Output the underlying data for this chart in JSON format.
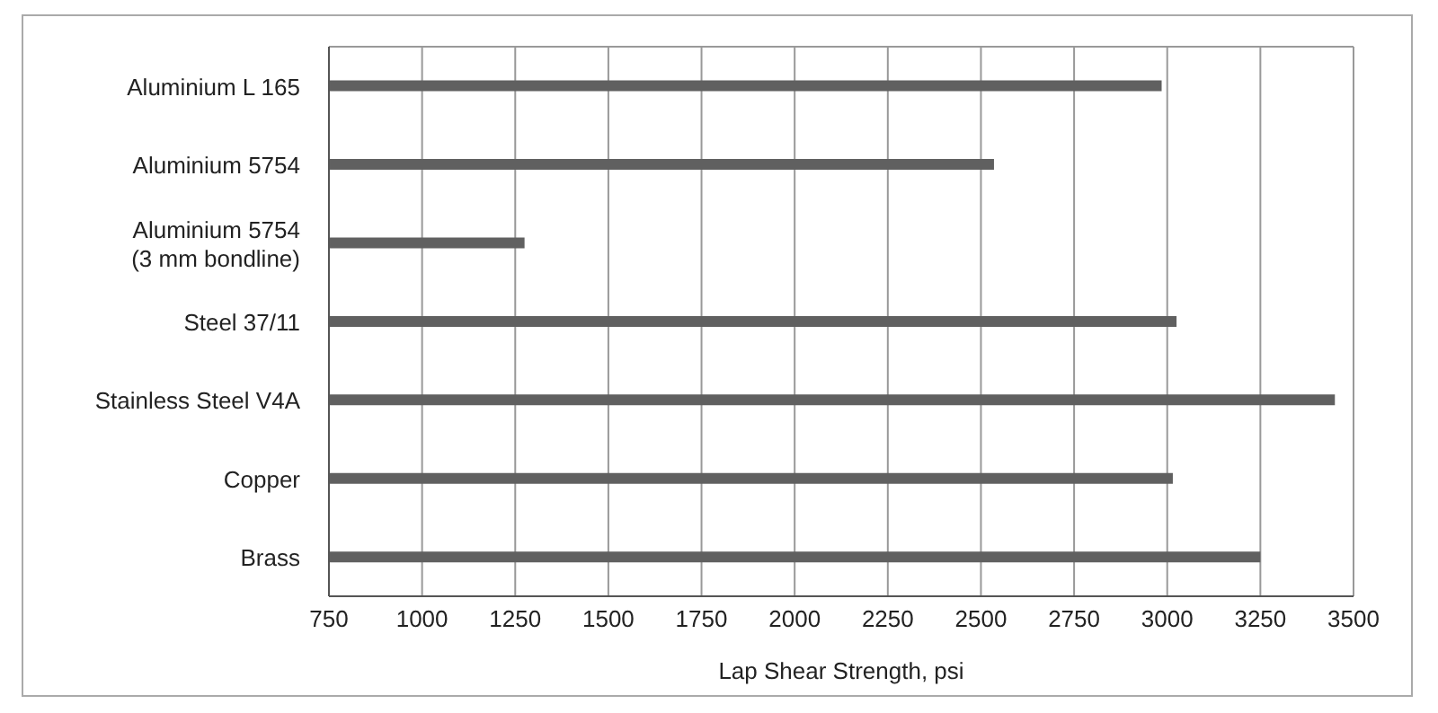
{
  "chart_data": {
    "type": "bar",
    "orientation": "horizontal",
    "categories": [
      "Aluminium L 165",
      "Aluminium 5754",
      "Aluminium 5754\n(3 mm bondline)",
      "Steel 37/11",
      "Stainless Steel V4A",
      "Copper",
      "Brass"
    ],
    "values": [
      2985,
      2535,
      1275,
      3025,
      3450,
      3015,
      3250
    ],
    "color": "#606060",
    "xlabel": "Lap Shear Strength, psi",
    "xlim": [
      750,
      3500
    ],
    "xticks": [
      750,
      1000,
      1250,
      1500,
      1750,
      2000,
      2250,
      2500,
      2750,
      3000,
      3250,
      3500
    ],
    "grid": "x",
    "legend": false
  }
}
